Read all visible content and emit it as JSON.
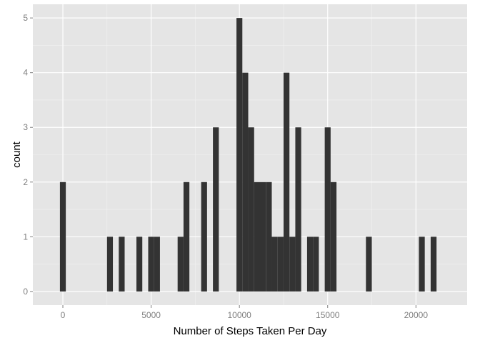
{
  "chart_data": {
    "type": "bar",
    "subtype": "histogram",
    "xlabel": "Number of Steps Taken Per Day",
    "ylabel": "count",
    "xlim": [
      -1700,
      22900
    ],
    "ylim": [
      -0.25,
      5.25
    ],
    "x_ticks": [
      0,
      5000,
      10000,
      15000,
      20000
    ],
    "x_tick_labels": [
      "0",
      "5000",
      "10000",
      "15000",
      "20000"
    ],
    "y_ticks": [
      0,
      1,
      2,
      3,
      4,
      5
    ],
    "y_tick_labels": [
      "0",
      "1",
      "2",
      "3",
      "4",
      "5"
    ],
    "bin_width": 333,
    "grid": true,
    "colors": {
      "bar": "#333333",
      "panel": "#e5e5e5",
      "grid_major": "#ffffff",
      "grid_minor": "#f2f2f2",
      "tick_text": "#7f7f7f"
    },
    "bins": [
      {
        "x": 0,
        "count": 2
      },
      {
        "x": 2667,
        "count": 1
      },
      {
        "x": 3333,
        "count": 1
      },
      {
        "x": 4333,
        "count": 1
      },
      {
        "x": 5000,
        "count": 1
      },
      {
        "x": 5333,
        "count": 1
      },
      {
        "x": 6667,
        "count": 1
      },
      {
        "x": 7000,
        "count": 2
      },
      {
        "x": 8000,
        "count": 2
      },
      {
        "x": 8667,
        "count": 3
      },
      {
        "x": 10000,
        "count": 5
      },
      {
        "x": 10333,
        "count": 4
      },
      {
        "x": 10667,
        "count": 3
      },
      {
        "x": 11000,
        "count": 2
      },
      {
        "x": 11333,
        "count": 2
      },
      {
        "x": 11667,
        "count": 2
      },
      {
        "x": 12000,
        "count": 1
      },
      {
        "x": 12333,
        "count": 1
      },
      {
        "x": 12667,
        "count": 4
      },
      {
        "x": 13000,
        "count": 1
      },
      {
        "x": 13333,
        "count": 3
      },
      {
        "x": 14000,
        "count": 1
      },
      {
        "x": 14333,
        "count": 1
      },
      {
        "x": 15000,
        "count": 3
      },
      {
        "x": 15333,
        "count": 2
      },
      {
        "x": 17333,
        "count": 1
      },
      {
        "x": 20333,
        "count": 1
      },
      {
        "x": 21000,
        "count": 1
      }
    ]
  }
}
